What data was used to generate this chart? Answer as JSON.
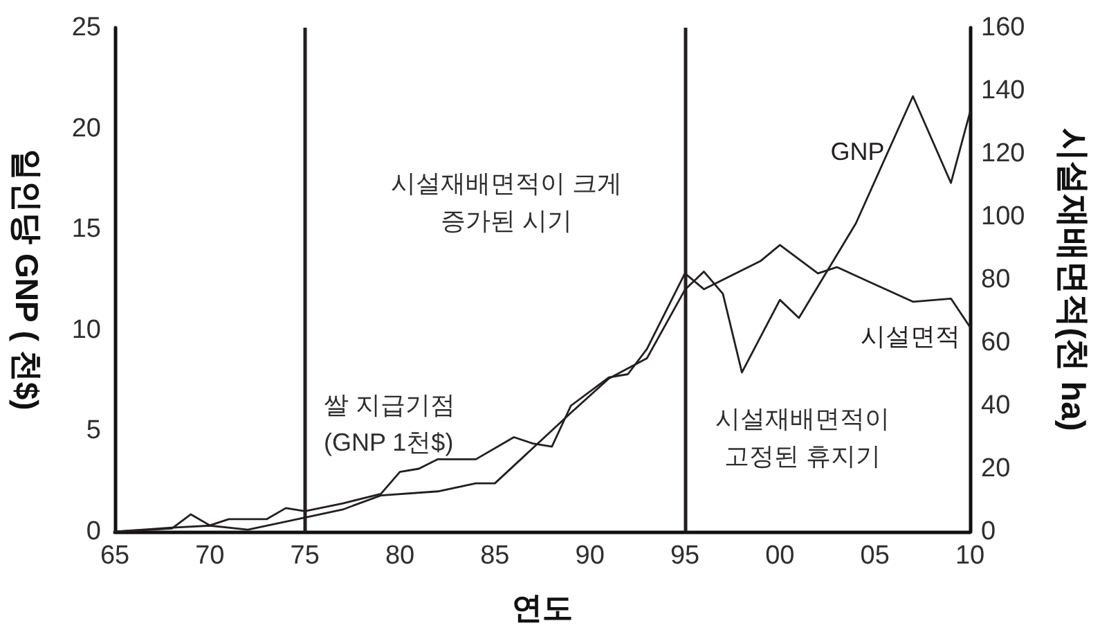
{
  "chart_data": {
    "type": "line",
    "xlabel": "연도",
    "ylabel": "일인당 GNP ( 천$)",
    "y2label": "시설재배면적(천 ha)",
    "xlim": [
      1965,
      2010
    ],
    "xticks": [
      {
        "value": 1965,
        "label": "65"
      },
      {
        "value": 1970,
        "label": "70"
      },
      {
        "value": 1975,
        "label": "75"
      },
      {
        "value": 1980,
        "label": "80"
      },
      {
        "value": 1985,
        "label": "85"
      },
      {
        "value": 1990,
        "label": "90"
      },
      {
        "value": 1995,
        "label": "95"
      },
      {
        "value": 2000,
        "label": "00"
      },
      {
        "value": 2005,
        "label": "05"
      },
      {
        "value": 2010,
        "label": "10"
      }
    ],
    "ylim": [
      0,
      25
    ],
    "yticks": [
      0,
      5,
      10,
      15,
      20,
      25
    ],
    "y2lim": [
      0,
      160
    ],
    "y2ticks": [
      0,
      20,
      40,
      60,
      80,
      100,
      120,
      140,
      160
    ],
    "series": [
      {
        "name": "GNP",
        "color": "#231f20",
        "x": [
          1965,
          1968,
          1970,
          1972,
          1975,
          1977,
          1979,
          1982,
          1984,
          1985,
          1989,
          1991,
          1993,
          1995,
          1996,
          1997,
          1998,
          2000,
          2001,
          2004,
          2007,
          2009,
          2010
        ],
        "values": [
          0,
          0.2,
          0.3,
          0.1,
          0.7,
          1.1,
          1.8,
          2.0,
          2.4,
          2.4,
          5.9,
          7.6,
          8.6,
          12.0,
          12.9,
          11.8,
          7.9,
          11.5,
          10.6,
          15.3,
          21.6,
          17.3,
          20.8
        ]
      },
      {
        "name": "시설면적",
        "color": "#231f20",
        "axis": "y2",
        "x": [
          1965,
          1968,
          1969,
          1970,
          1971,
          1973,
          1974,
          1975,
          1977,
          1979,
          1980,
          1981,
          1982,
          1984,
          1986,
          1987,
          1988,
          1989,
          1991,
          1992,
          1993,
          1995,
          1996,
          1999,
          2000,
          2002,
          2003,
          2007,
          2009,
          2010
        ],
        "values": [
          0,
          1,
          5.5,
          2,
          4,
          4,
          7.5,
          6.5,
          9,
          12,
          19,
          20,
          23,
          23,
          30,
          28,
          27,
          40,
          49,
          50,
          58,
          82,
          77,
          86,
          91,
          82,
          84,
          73,
          74,
          65
        ]
      }
    ],
    "ref_lines": [
      {
        "axis": "x",
        "value": 1975,
        "color": "#231f20"
      },
      {
        "axis": "x",
        "value": 1995,
        "color": "#231f20"
      }
    ],
    "annotations": [
      "시설재배면적이 크게\n증가된 시기",
      "쌀 지급기점\n(GNP 1천$)",
      "시설재배면적이\n고정된 휴지기"
    ],
    "grid": false,
    "legend": false,
    "marker": "none"
  }
}
